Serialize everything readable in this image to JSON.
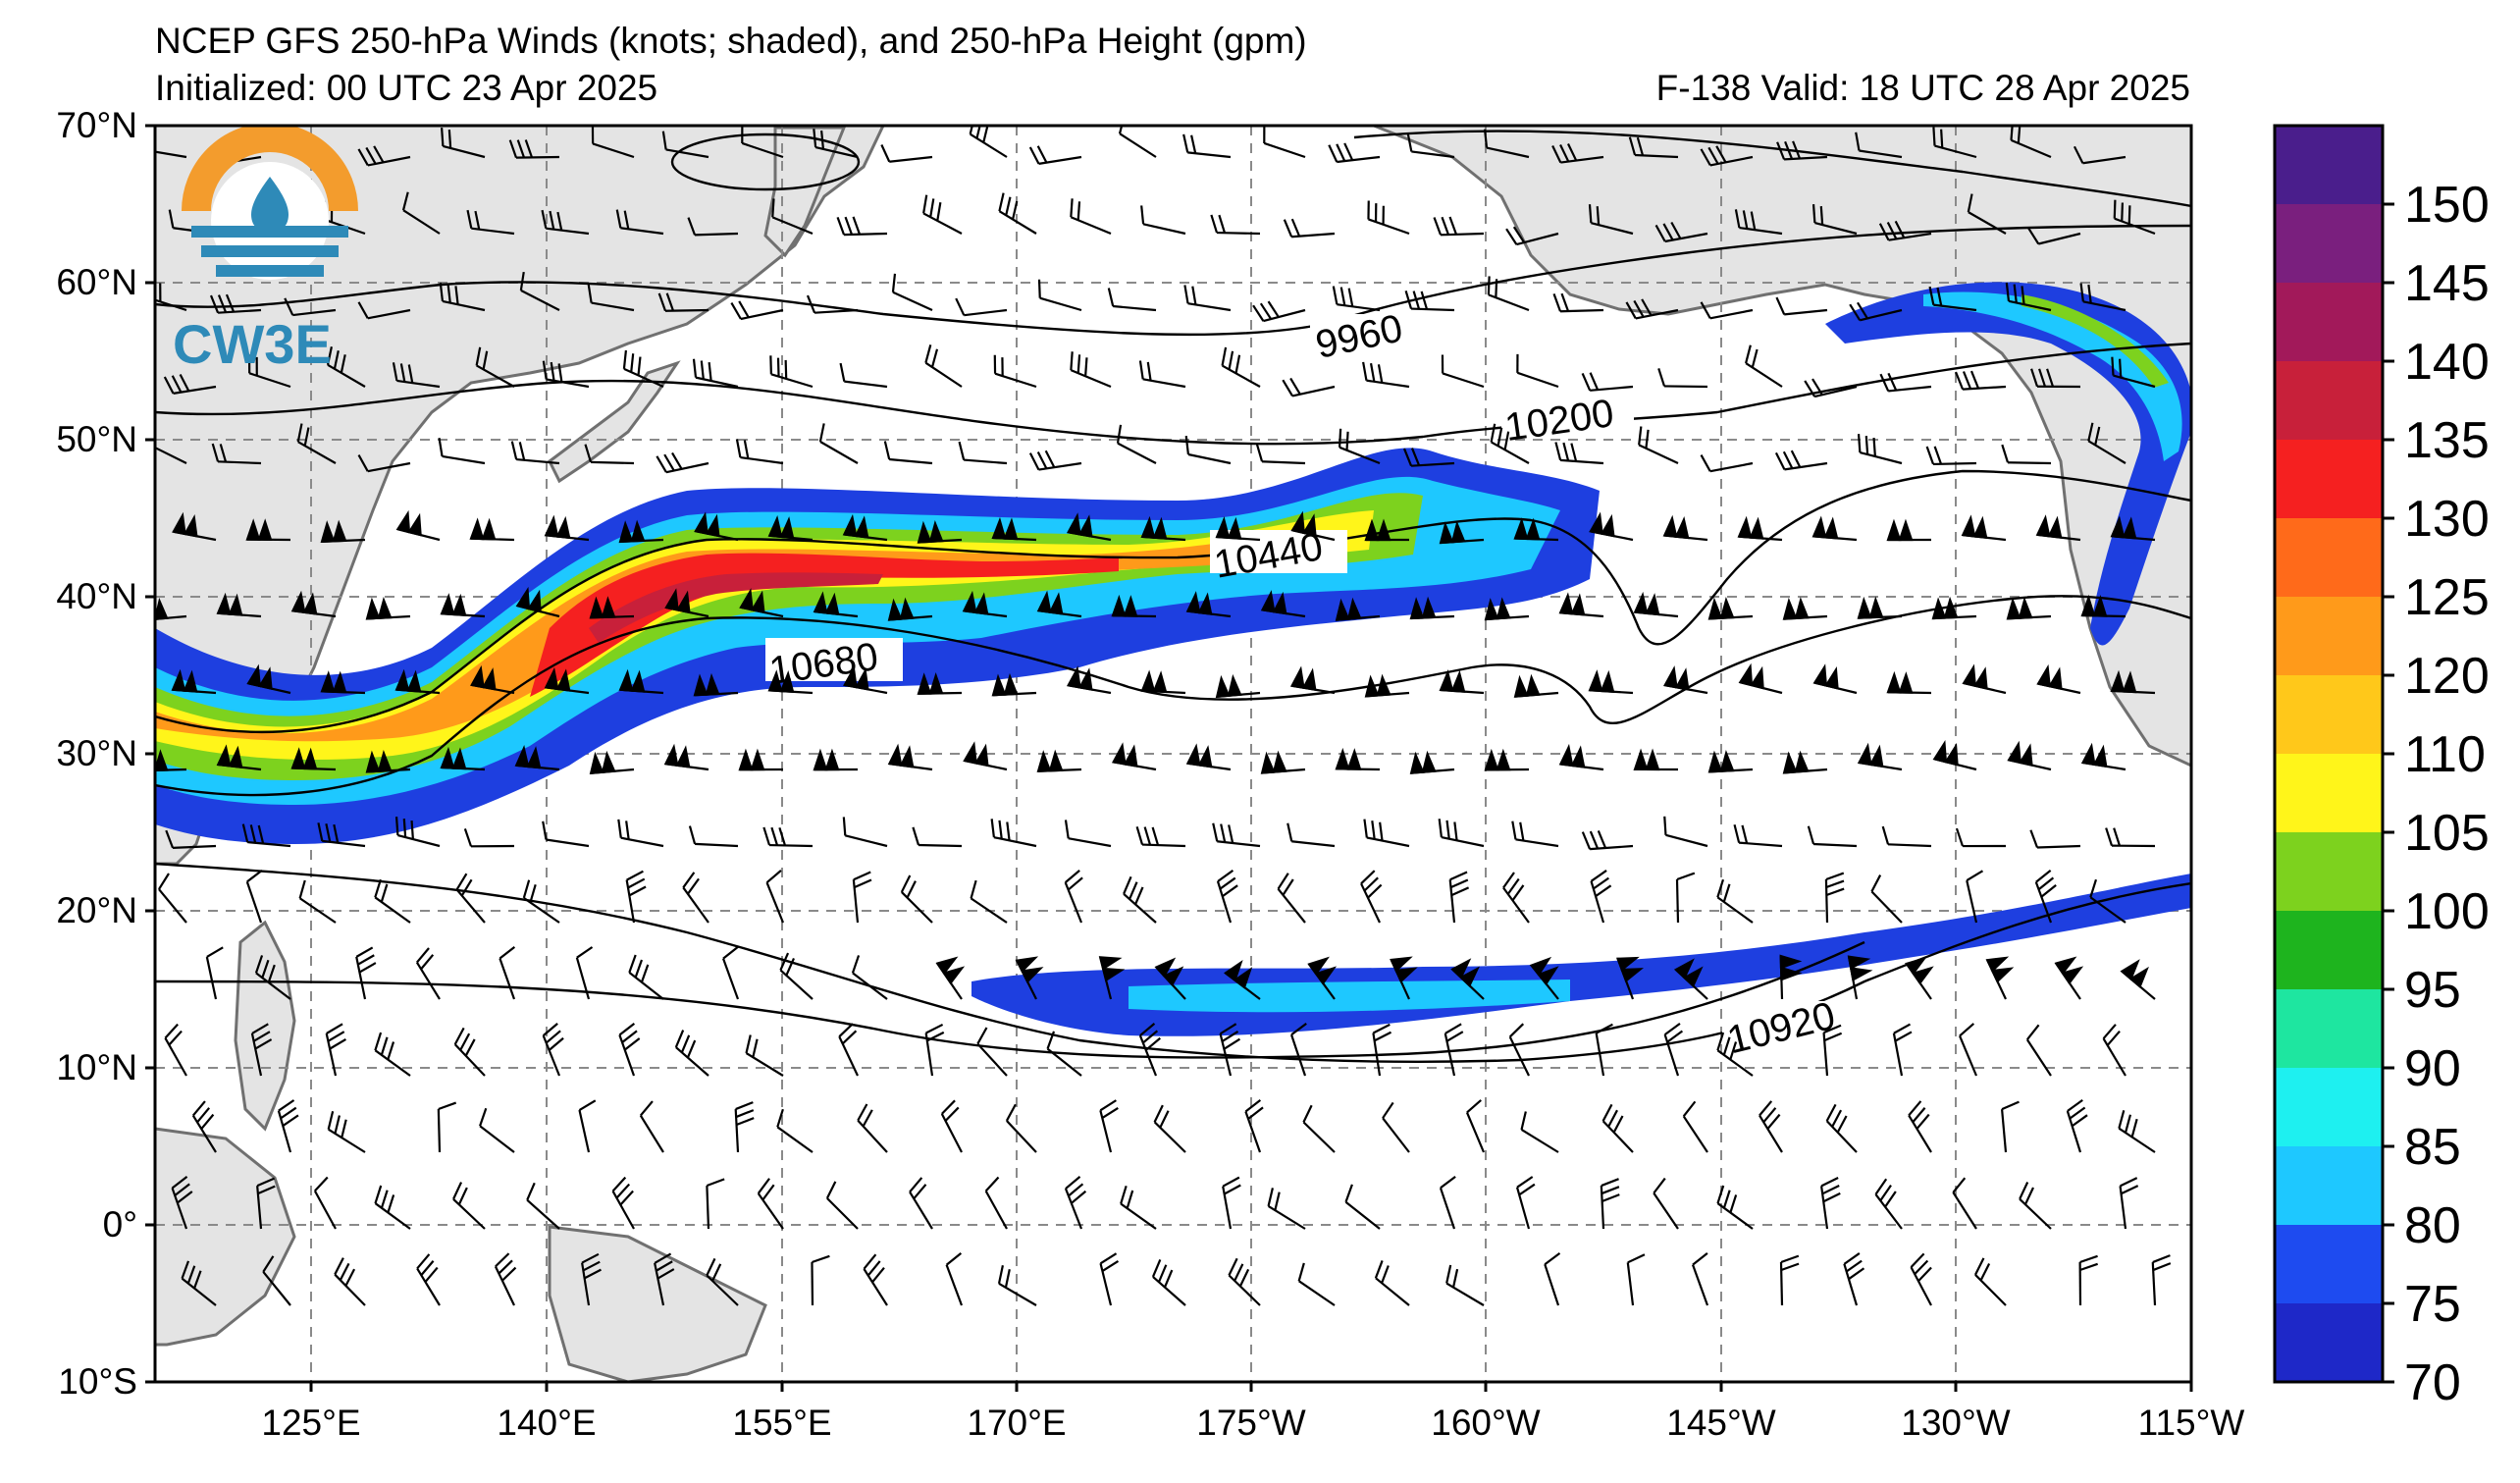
{
  "title": "NCEP GFS 250-hPa Winds (knots; shaded), and 250-hPa Height (gpm)",
  "initialized": "Initialized: 00 UTC 23 Apr 2025",
  "valid": "F-138  Valid: 18 UTC 28 Apr 2025",
  "logo": {
    "text": "CW3E",
    "colors": {
      "orange": "#f39c2d",
      "blue": "#2e8ab8"
    }
  },
  "lat_labels": [
    "70°N",
    "60°N",
    "50°N",
    "40°N",
    "30°N",
    "20°N",
    "10°N",
    "0°",
    "10°S"
  ],
  "lon_labels": [
    "125°E",
    "140°E",
    "155°E",
    "170°E",
    "175°W",
    "160°W",
    "145°W",
    "130°W",
    "115°W"
  ],
  "contour_labels": [
    "9960",
    "10200",
    "10440",
    "10680",
    "10920"
  ],
  "colorbar": {
    "labels": [
      "150",
      "145",
      "140",
      "135",
      "130",
      "125",
      "120",
      "110",
      "105",
      "100",
      "95",
      "90",
      "85",
      "80",
      "75",
      "70"
    ],
    "colors": [
      "#4a1e8c",
      "#7a1f7e",
      "#a2195a",
      "#c8203a",
      "#f52020",
      "#ff6a1a",
      "#ff9a1a",
      "#ffc81a",
      "#fff51a",
      "#7dd21e",
      "#1eb41e",
      "#1ee6a0",
      "#1ef0f0",
      "#1ec8ff",
      "#1e4bf0",
      "#1e28c8"
    ]
  }
}
